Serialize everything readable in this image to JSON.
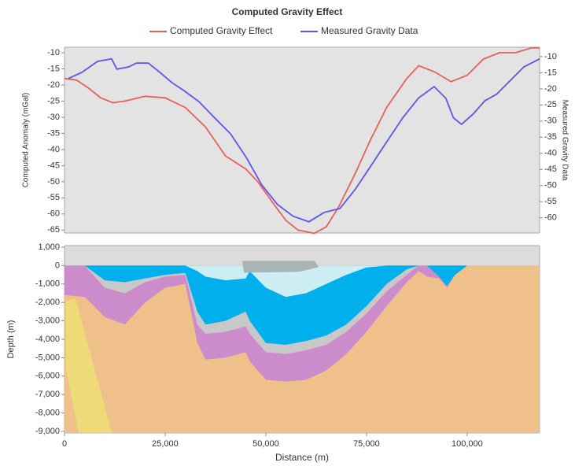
{
  "chart_data": [
    {
      "type": "line",
      "title": "Computed Gravity Effect",
      "ylabel": "Computed Anomaly (mGal)",
      "y2label": "Measured Gravity Data",
      "xlim": [
        0,
        118000
      ],
      "ylim": [
        -65.9,
        -8.3
      ],
      "y2lim": [
        -64.7,
        -7.1
      ],
      "yticks": [
        -10,
        -15,
        -20,
        -25,
        -30,
        -35,
        -40,
        -45,
        -50,
        -55,
        -60,
        -65
      ],
      "y2ticks": [
        -10,
        -15,
        -20,
        -25,
        -30,
        -35,
        -40,
        -45,
        -50,
        -55,
        -60
      ],
      "legend": "top",
      "series": [
        {
          "name": "Computed Gravity Effect",
          "color": "#e8605c",
          "x": [
            0,
            3000,
            6000,
            9000,
            12000,
            15000,
            20000,
            25000,
            30000,
            35000,
            40000,
            45000,
            48000,
            52000,
            55000,
            58000,
            62000,
            65000,
            68000,
            72000,
            76000,
            80000,
            85000,
            88000,
            92000,
            96000,
            100000,
            104000,
            108000,
            112000,
            116000,
            118000
          ],
          "values": [
            -18,
            -18.5,
            -21,
            -24,
            -25.5,
            -25,
            -23.5,
            -24,
            -27,
            -33,
            -42,
            -46,
            -50,
            -57,
            -62,
            -65,
            -66,
            -64,
            -58,
            -48,
            -37,
            -27,
            -18,
            -14,
            -16,
            -19,
            -17,
            -12,
            -10,
            -10,
            -8.5,
            -8.5
          ]
        },
        {
          "name": "Measured Gravity Data",
          "color": "#5a55ee",
          "axis": "y2",
          "x": [
            1000,
            4300,
            8200,
            11700,
            13000,
            15900,
            17900,
            20800,
            23700,
            26600,
            29500,
            33400,
            37300,
            41200,
            45100,
            49000,
            52900,
            56800,
            60700,
            64500,
            68400,
            72300,
            76200,
            80100,
            84000,
            87900,
            91800,
            94700,
            96600,
            98600,
            101500,
            104400,
            107300,
            111200,
            114100,
            118000
          ],
          "values": [
            -16.8,
            -14.9,
            -11.5,
            -10.7,
            -13.9,
            -13.2,
            -12,
            -12,
            -14.9,
            -18,
            -20.4,
            -24,
            -29,
            -33.9,
            -41.2,
            -49.8,
            -55.9,
            -59.5,
            -61.2,
            -58.3,
            -57.1,
            -51,
            -43.7,
            -36.3,
            -29,
            -22.9,
            -19.3,
            -22.9,
            -29,
            -31,
            -27.8,
            -23.7,
            -21.7,
            -16.8,
            -13.2,
            -10.7
          ]
        }
      ]
    },
    {
      "type": "section",
      "xlabel": "Distance (m)",
      "ylabel": "Depth (m)",
      "xlim": [
        0,
        118000
      ],
      "ylim": [
        -9085,
        1085
      ],
      "xticks": [
        0,
        {
          "value": 25000,
          "label": "25,000"
        },
        {
          "value": 50000,
          "label": "50,000"
        },
        {
          "value": 75000,
          "label": "75,000"
        },
        {
          "value": 100000,
          "label": "100,000"
        }
      ],
      "yticks": [
        {
          "value": 1000,
          "label": "1,000"
        },
        0,
        {
          "value": -1000,
          "label": "-1,000"
        },
        {
          "value": -2000,
          "label": "-2,000"
        },
        {
          "value": -3000,
          "label": "-3,000"
        },
        {
          "value": -4000,
          "label": "-4,000"
        },
        {
          "value": -5000,
          "label": "-5,000"
        },
        {
          "value": -6000,
          "label": "-6,000"
        },
        {
          "value": -7000,
          "label": "-7,000"
        },
        {
          "value": -8000,
          "label": "-8,000"
        },
        {
          "value": -9000,
          "label": "-9,000"
        }
      ],
      "x": [
        0,
        5000,
        10000,
        15000,
        20000,
        25000,
        30000,
        33000,
        35000,
        40000,
        45000,
        46000,
        50000,
        55000,
        60000,
        65000,
        70000,
        75000,
        80000,
        85000,
        88000,
        90000,
        93000,
        95000,
        97000,
        100000,
        105000,
        110000,
        112000,
        115000,
        118000
      ],
      "basement_color": "#f0c08a",
      "series": [
        {
          "color": "#cc8ccc",
          "values": [
            -1600,
            -1700,
            -2800,
            -3200,
            -2000,
            -1200,
            -1000,
            -4200,
            -5100,
            -5000,
            -4700,
            -5200,
            -6200,
            -6300,
            -6200,
            -5700,
            -4800,
            -3600,
            -2200,
            -900,
            -300,
            -600,
            -700,
            -1200,
            -500,
            0,
            0,
            0,
            0,
            0,
            0
          ]
        },
        {
          "color": "#c8c8c8",
          "values": [
            0,
            0,
            -1200,
            -1500,
            -900,
            -600,
            -500,
            -3200,
            -3700,
            -3600,
            -3300,
            -3700,
            -4700,
            -4800,
            -4600,
            -4300,
            -3600,
            -2600,
            -1400,
            -500,
            0,
            0,
            -600,
            -1100,
            -500,
            0,
            0,
            0,
            0,
            0,
            0
          ]
        },
        {
          "color": "#00b0ec",
          "values": [
            0,
            0,
            -800,
            -900,
            -700,
            -500,
            -400,
            -2500,
            -3200,
            -3000,
            -2500,
            -3000,
            -4200,
            -4300,
            -4100,
            -3800,
            -3200,
            -2200,
            -1000,
            -200,
            0,
            0,
            -600,
            -1100,
            -500,
            0,
            0,
            0,
            0,
            0,
            0
          ]
        },
        {
          "color": "#cdeef2",
          "values": [
            0,
            0,
            0,
            0,
            0,
            0,
            0,
            -300,
            -600,
            -800,
            -700,
            -300,
            -1200,
            -1700,
            -1500,
            -1000,
            -500,
            -100,
            0,
            0,
            0,
            0,
            0,
            0,
            0,
            0,
            0,
            0,
            0,
            0,
            0
          ]
        }
      ]
    }
  ]
}
